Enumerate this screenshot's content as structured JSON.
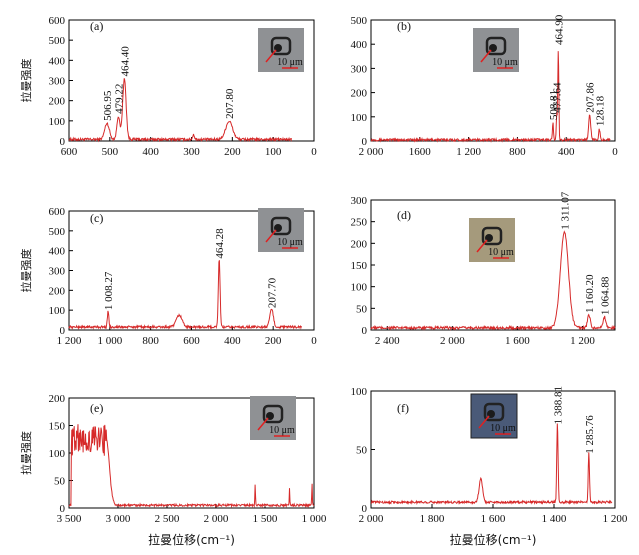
{
  "y_axis_label": "拉曼强度",
  "x_axis_label": "拉曼位移(cm⁻¹)",
  "scale_bar_label": "10 μm",
  "chart_data": [
    {
      "id": "a",
      "type": "line",
      "label": "(a)",
      "xlim": [
        600,
        0
      ],
      "ylim": [
        0,
        600
      ],
      "x_ticks": [
        600,
        500,
        400,
        300,
        200,
        100,
        0
      ],
      "x_tick_labels": [
        "600",
        "500",
        "400",
        "300",
        "200",
        "100",
        "0"
      ],
      "y_ticks": [
        0,
        100,
        200,
        300,
        400,
        500,
        600
      ],
      "show_ylabel": true,
      "show_xlabel": false,
      "baseline": 8,
      "xrange": [
        600,
        55
      ],
      "peaks": [
        {
          "x": 506.95,
          "y": 80,
          "w": 8,
          "label": "506.95"
        },
        {
          "x": 479.22,
          "y": 115,
          "w": 5,
          "label": "479.22"
        },
        {
          "x": 464.4,
          "y": 300,
          "w": 6,
          "label": "464.40"
        },
        {
          "x": 295,
          "y": 25,
          "w": 3
        },
        {
          "x": 207.8,
          "y": 90,
          "w": 12,
          "label": "207.80"
        }
      ],
      "inset": {
        "tone": "gray"
      }
    },
    {
      "id": "b",
      "type": "line",
      "label": "(b)",
      "xlim": [
        2000,
        0
      ],
      "ylim": [
        0,
        500
      ],
      "x_ticks": [
        2000,
        1600,
        1200,
        800,
        400,
        0
      ],
      "x_tick_labels": [
        "2 000",
        "1600",
        "1 200",
        "800",
        "400",
        "0"
      ],
      "y_ticks": [
        0,
        100,
        200,
        300,
        400,
        500
      ],
      "show_ylabel": false,
      "show_xlabel": false,
      "baseline": 5,
      "xrange": [
        2000,
        40
      ],
      "peaks": [
        {
          "x": 508.81,
          "y": 70,
          "w": 6,
          "label": "508.81"
        },
        {
          "x": 477.64,
          "y": 100,
          "w": 6,
          "label": "477.64"
        },
        {
          "x": 464.9,
          "y": 380,
          "w": 6,
          "label": "464.90"
        },
        {
          "x": 207.86,
          "y": 100,
          "w": 12,
          "label": "207.86"
        },
        {
          "x": 128.18,
          "y": 45,
          "w": 8,
          "label": "128.18"
        }
      ],
      "inset": {
        "tone": "gray"
      }
    },
    {
      "id": "c",
      "type": "line",
      "label": "(c)",
      "xlim": [
        1200,
        0
      ],
      "ylim": [
        0,
        600
      ],
      "x_ticks": [
        1200,
        1000,
        800,
        600,
        400,
        200,
        0
      ],
      "x_tick_labels": [
        "1 200",
        "1 000",
        "800",
        "600",
        "400",
        "200",
        "0"
      ],
      "y_ticks": [
        0,
        100,
        200,
        300,
        400,
        500,
        600
      ],
      "show_ylabel": true,
      "show_xlabel": false,
      "baseline": 15,
      "xrange": [
        1200,
        60
      ],
      "peaks": [
        {
          "x": 1008.27,
          "y": 80,
          "w": 5,
          "label": "1 008.27"
        },
        {
          "x": 660,
          "y": 60,
          "w": 20
        },
        {
          "x": 464.28,
          "y": 340,
          "w": 6,
          "label": "464.28"
        },
        {
          "x": 207.7,
          "y": 90,
          "w": 12,
          "label": "207.70"
        }
      ],
      "inset": {
        "tone": "gray"
      }
    },
    {
      "id": "d",
      "type": "line",
      "label": "(d)",
      "xlim": [
        2500,
        1000
      ],
      "ylim": [
        0,
        300
      ],
      "x_ticks": [
        2400,
        2000,
        1600,
        1200
      ],
      "x_tick_labels": [
        "2 400",
        "2 000",
        "1 600",
        "1 200"
      ],
      "y_ticks": [
        0,
        50,
        100,
        150,
        200,
        250,
        300
      ],
      "show_ylabel": false,
      "show_xlabel": false,
      "baseline": 5,
      "xrange": [
        2500,
        1000
      ],
      "peaks": [
        {
          "x": 1311.07,
          "y": 222,
          "w": 35,
          "label": "1 311.07"
        },
        {
          "x": 1160.2,
          "y": 30,
          "w": 12,
          "label": "1 160.20"
        },
        {
          "x": 1064.88,
          "y": 25,
          "w": 12,
          "label": "1 064.88"
        }
      ],
      "inset": {
        "tone": "warm"
      }
    },
    {
      "id": "e",
      "type": "line",
      "label": "(e)",
      "xlim": [
        3500,
        1000
      ],
      "ylim": [
        0,
        200
      ],
      "x_ticks": [
        3500,
        3000,
        2500,
        2000,
        1500,
        1000
      ],
      "x_tick_labels": [
        "3 500",
        "3 000",
        "2 500",
        "2 000",
        "1 500",
        "1 000"
      ],
      "y_ticks": [
        0,
        50,
        100,
        150,
        200
      ],
      "show_ylabel": true,
      "show_xlabel": true,
      "baseline": 5,
      "xrange": [
        3500,
        1000
      ],
      "band": {
        "from": 3480,
        "to": 3120,
        "level": 120
      },
      "peaks": [
        {
          "x": 1600,
          "y": 40,
          "w": 4
        },
        {
          "x": 1250,
          "y": 30,
          "w": 4
        },
        {
          "x": 1020,
          "y": 40,
          "w": 4
        }
      ],
      "inset": {
        "tone": "gray"
      }
    },
    {
      "id": "f",
      "type": "line",
      "label": "(f)",
      "xlim": [
        2000,
        1200
      ],
      "ylim": [
        0,
        100
      ],
      "x_ticks": [
        2000,
        1800,
        1600,
        1400,
        1200
      ],
      "x_tick_labels": [
        "2 000",
        "1 800",
        "1 600",
        "1 400",
        "1 200"
      ],
      "y_ticks": [
        0,
        50,
        100
      ],
      "show_ylabel": false,
      "show_xlabel": true,
      "baseline": 5,
      "xrange": [
        2000,
        1210
      ],
      "peaks": [
        {
          "x": 1640,
          "y": 20,
          "w": 8
        },
        {
          "x": 1388.81,
          "y": 68,
          "w": 3,
          "label": "1 388.81"
        },
        {
          "x": 1285.76,
          "y": 43,
          "w": 3,
          "label": "1 285.76"
        }
      ],
      "inset": {
        "tone": "blue"
      }
    }
  ]
}
